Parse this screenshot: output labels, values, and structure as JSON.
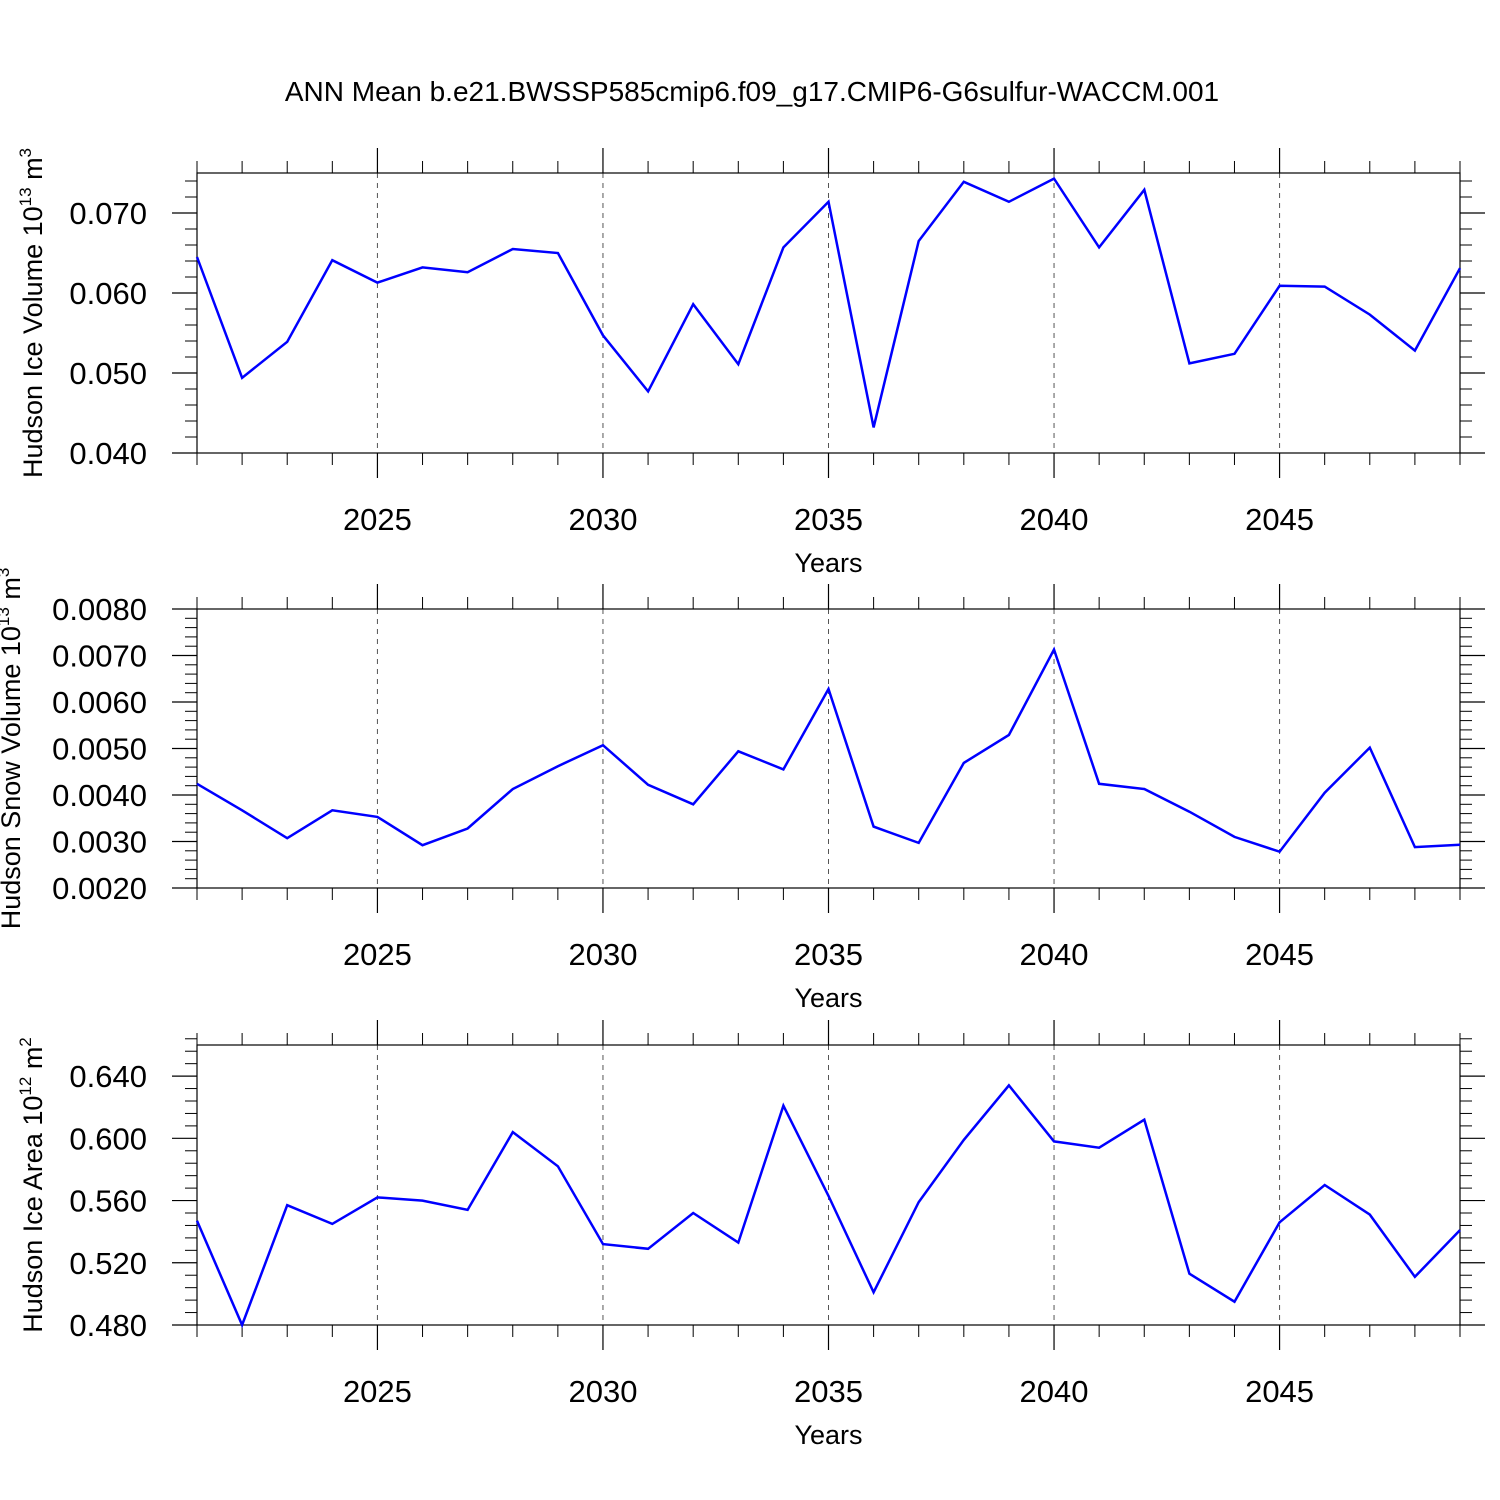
{
  "title": "ANN Mean b.e21.BWSSP585cmip6.f09_g17.CMIP6-G6sulfur-WACCM.001",
  "colors": {
    "line": "#0000ff",
    "axis": "#000000",
    "grid": "#555555"
  },
  "chart_data": [
    {
      "type": "line",
      "ylabel_main": "Hudson Ice Volume 10",
      "ylabel_exp": "13",
      "ylabel_unit": "m",
      "ylabel_unit_exp": "3",
      "xlabel": "Years",
      "xlim": [
        2021,
        2049
      ],
      "ylim": [
        0.04,
        0.075
      ],
      "yticks": [
        0.04,
        0.05,
        0.06,
        0.07
      ],
      "ytick_labels": [
        "0.040",
        "0.050",
        "0.060",
        "0.070"
      ],
      "yminor_step": 0.002,
      "xticks": [
        2025,
        2030,
        2035,
        2040,
        2045
      ],
      "xtick_labels": [
        "2025",
        "2030",
        "2035",
        "2040",
        "2045"
      ],
      "x": [
        2021,
        2022,
        2023,
        2024,
        2025,
        2026,
        2027,
        2028,
        2029,
        2030,
        2031,
        2032,
        2033,
        2034,
        2035,
        2036,
        2037,
        2038,
        2039,
        2040,
        2041,
        2042,
        2043,
        2044,
        2045,
        2046,
        2047,
        2048,
        2049
      ],
      "values": [
        0.0645,
        0.0494,
        0.0539,
        0.0641,
        0.0613,
        0.0632,
        0.0626,
        0.0655,
        0.065,
        0.0547,
        0.0477,
        0.0586,
        0.0511,
        0.0657,
        0.0714,
        0.0432,
        0.0665,
        0.0739,
        0.0714,
        0.0743,
        0.0657,
        0.0729,
        0.0512,
        0.0524,
        0.0609,
        0.0608,
        0.0573,
        0.0528,
        0.0631
      ]
    },
    {
      "type": "line",
      "ylabel_main": "Hudson Snow Volume 10",
      "ylabel_exp": "13",
      "ylabel_unit": "m",
      "ylabel_unit_exp": "3",
      "xlabel": "Years",
      "xlim": [
        2021,
        2049
      ],
      "ylim": [
        0.002,
        0.008
      ],
      "yticks": [
        0.002,
        0.003,
        0.004,
        0.005,
        0.006,
        0.007,
        0.008
      ],
      "ytick_labels": [
        "0.0020",
        "0.0030",
        "0.0040",
        "0.0050",
        "0.0060",
        "0.0070",
        "0.0080"
      ],
      "yminor_step": 0.0002,
      "xticks": [
        2025,
        2030,
        2035,
        2040,
        2045
      ],
      "xtick_labels": [
        "2025",
        "2030",
        "2035",
        "2040",
        "2045"
      ],
      "x": [
        2021,
        2022,
        2023,
        2024,
        2025,
        2026,
        2027,
        2028,
        2029,
        2030,
        2031,
        2032,
        2033,
        2034,
        2035,
        2036,
        2037,
        2038,
        2039,
        2040,
        2041,
        2042,
        2043,
        2044,
        2045,
        2046,
        2047,
        2048,
        2049
      ],
      "values": [
        0.00424,
        0.00367,
        0.00307,
        0.00367,
        0.00353,
        0.00292,
        0.00328,
        0.00413,
        0.00462,
        0.00507,
        0.00422,
        0.0038,
        0.00494,
        0.00455,
        0.00628,
        0.00332,
        0.00297,
        0.00469,
        0.00529,
        0.00713,
        0.00424,
        0.00413,
        0.00364,
        0.0031,
        0.00278,
        0.00405,
        0.00502,
        0.00288,
        0.00293
      ]
    },
    {
      "type": "line",
      "ylabel_main": "Hudson Ice Area 10",
      "ylabel_exp": "12",
      "ylabel_unit": "m",
      "ylabel_unit_exp": "2",
      "xlabel": "Years",
      "xlim": [
        2021,
        2049
      ],
      "ylim": [
        0.48,
        0.66
      ],
      "yticks": [
        0.48,
        0.52,
        0.56,
        0.6,
        0.64
      ],
      "ytick_labels": [
        "0.480",
        "0.520",
        "0.560",
        "0.600",
        "0.640"
      ],
      "yminor_step": 0.008,
      "xticks": [
        2025,
        2030,
        2035,
        2040,
        2045
      ],
      "xtick_labels": [
        "2025",
        "2030",
        "2035",
        "2040",
        "2045"
      ],
      "x": [
        2021,
        2022,
        2023,
        2024,
        2025,
        2026,
        2027,
        2028,
        2029,
        2030,
        2031,
        2032,
        2033,
        2034,
        2035,
        2036,
        2037,
        2038,
        2039,
        2040,
        2041,
        2042,
        2043,
        2044,
        2045,
        2046,
        2047,
        2048,
        2049
      ],
      "values": [
        0.547,
        0.48,
        0.557,
        0.545,
        0.562,
        0.56,
        0.554,
        0.604,
        0.582,
        0.532,
        0.529,
        0.552,
        0.533,
        0.621,
        0.563,
        0.501,
        0.559,
        0.599,
        0.634,
        0.598,
        0.594,
        0.612,
        0.513,
        0.495,
        0.546,
        0.57,
        0.551,
        0.511,
        0.541
      ]
    }
  ]
}
